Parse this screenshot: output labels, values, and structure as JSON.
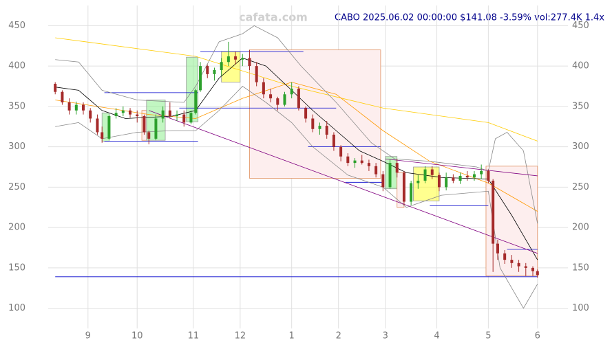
{
  "chart_data": {
    "type": "candlestick",
    "title": "CABO 2025.06.02 00:00:00 $141.08 -3.59% vol:277.4K 1.4x",
    "watermark": "cafata.com",
    "up_color": "#2ca02c",
    "down_color": "#a52a2a",
    "xlim": [
      -3,
      219
    ],
    "ylim": [
      75,
      475
    ],
    "xticks": [
      {
        "value": 14,
        "label": "9"
      },
      {
        "value": 35,
        "label": "10"
      },
      {
        "value": 59,
        "label": "11"
      },
      {
        "value": 79,
        "label": "12"
      },
      {
        "value": 101,
        "label": "1"
      },
      {
        "value": 121,
        "label": "2"
      },
      {
        "value": 141,
        "label": "3"
      },
      {
        "value": 163,
        "label": "4"
      },
      {
        "value": 185,
        "label": "5"
      },
      {
        "value": 206,
        "label": "6"
      }
    ],
    "yticks": [
      100,
      150,
      200,
      250,
      300,
      350,
      400,
      450
    ],
    "grid": true,
    "x": [
      0,
      3,
      6,
      9,
      12,
      15,
      18,
      20,
      23,
      26,
      29,
      32,
      35,
      38,
      40,
      43,
      46,
      49,
      52,
      55,
      58,
      60,
      62,
      65,
      68,
      71,
      74,
      77,
      80,
      83,
      86,
      89,
      92,
      95,
      98,
      101,
      104,
      107,
      110,
      113,
      116,
      119,
      122,
      125,
      128,
      131,
      134,
      137,
      140,
      143,
      146,
      149,
      152,
      155,
      158,
      161,
      164,
      167,
      170,
      173,
      176,
      179,
      182,
      185,
      187,
      189,
      192,
      195,
      198,
      201,
      204,
      206
    ],
    "open": [
      378,
      368,
      355,
      345,
      352,
      345,
      335,
      318,
      310,
      338,
      342,
      345,
      340,
      338,
      318,
      310,
      335,
      345,
      338,
      340,
      330,
      342,
      370,
      400,
      390,
      395,
      405,
      412,
      408,
      410,
      400,
      380,
      365,
      360,
      352,
      365,
      372,
      348,
      335,
      322,
      326,
      315,
      300,
      288,
      280,
      283,
      280,
      276,
      266,
      250,
      280,
      268,
      232,
      255,
      258,
      272,
      265,
      250,
      262,
      258,
      264,
      262,
      266,
      270,
      258,
      180,
      168,
      160,
      156,
      152,
      150,
      146
    ],
    "high": [
      380,
      370,
      360,
      356,
      355,
      348,
      340,
      325,
      340,
      348,
      350,
      348,
      345,
      340,
      320,
      340,
      350,
      355,
      345,
      345,
      345,
      372,
      405,
      402,
      398,
      410,
      430,
      418,
      415,
      420,
      405,
      385,
      372,
      362,
      368,
      380,
      375,
      350,
      340,
      330,
      332,
      318,
      302,
      292,
      286,
      290,
      284,
      280,
      270,
      285,
      285,
      270,
      258,
      265,
      276,
      276,
      268,
      268,
      266,
      268,
      270,
      270,
      278,
      272,
      260,
      185,
      172,
      166,
      160,
      156,
      152,
      148
    ],
    "low": [
      365,
      352,
      340,
      340,
      340,
      330,
      315,
      305,
      308,
      335,
      338,
      336,
      330,
      315,
      303,
      308,
      330,
      335,
      332,
      325,
      328,
      340,
      368,
      385,
      382,
      388,
      400,
      402,
      400,
      395,
      375,
      360,
      355,
      345,
      350,
      360,
      345,
      330,
      318,
      315,
      310,
      295,
      282,
      276,
      274,
      278,
      270,
      262,
      245,
      248,
      262,
      228,
      228,
      248,
      255,
      260,
      245,
      246,
      255,
      254,
      258,
      258,
      260,
      255,
      145,
      160,
      155,
      150,
      145,
      140,
      140,
      138
    ],
    "close": [
      368,
      355,
      345,
      352,
      345,
      335,
      318,
      310,
      338,
      342,
      345,
      340,
      338,
      318,
      310,
      335,
      345,
      338,
      340,
      330,
      342,
      370,
      400,
      390,
      395,
      405,
      412,
      408,
      410,
      400,
      380,
      365,
      360,
      352,
      365,
      372,
      348,
      335,
      322,
      326,
      315,
      300,
      288,
      280,
      283,
      280,
      276,
      266,
      250,
      280,
      268,
      232,
      255,
      258,
      272,
      265,
      250,
      262,
      258,
      264,
      262,
      266,
      270,
      258,
      180,
      168,
      160,
      156,
      152,
      150,
      146,
      141.08
    ],
    "overlays": [
      {
        "color": "#ffcc00",
        "x": [
          0,
          60,
          101,
          140,
          185,
          206
        ],
        "values": [
          435,
          412,
          375,
          348,
          330,
          307
        ]
      },
      {
        "color": "#ff9900",
        "x": [
          0,
          40,
          60,
          80,
          101,
          120,
          140,
          160,
          185,
          206
        ],
        "values": [
          358,
          340,
          335,
          360,
          380,
          365,
          320,
          282,
          255,
          220
        ]
      },
      {
        "color": "#000000",
        "x": [
          0,
          10,
          20,
          30,
          50,
          60,
          70,
          80,
          90,
          101,
          110,
          120,
          130,
          140,
          150,
          165,
          185,
          195,
          206
        ],
        "values": [
          374,
          370,
          345,
          335,
          338,
          345,
          385,
          410,
          400,
          370,
          345,
          320,
          295,
          282,
          268,
          262,
          260,
          215,
          160
        ]
      },
      {
        "color": "#888888",
        "x": [
          0,
          10,
          20,
          35,
          55,
          60,
          70,
          80,
          85,
          95,
          105,
          120,
          135,
          145,
          160,
          180,
          185,
          188,
          193,
          200,
          206
        ],
        "values": [
          408,
          405,
          370,
          358,
          355,
          375,
          430,
          440,
          450,
          435,
          400,
          355,
          305,
          285,
          282,
          275,
          270,
          310,
          318,
          295,
          205
        ]
      },
      {
        "color": "#888888",
        "x": [
          0,
          10,
          20,
          35,
          50,
          60,
          70,
          80,
          90,
          101,
          110,
          125,
          140,
          150,
          165,
          185,
          190,
          200,
          206
        ],
        "values": [
          325,
          330,
          310,
          318,
          320,
          320,
          345,
          375,
          355,
          330,
          300,
          265,
          250,
          225,
          240,
          245,
          150,
          100,
          130
        ]
      },
      {
        "color": "#800080",
        "x": [
          40,
          206
        ],
        "values": [
          345,
          168
        ]
      },
      {
        "color": "#800080",
        "x": [
          141,
          206
        ],
        "values": [
          285,
          264
        ]
      }
    ],
    "zones": [
      {
        "color": "#90ee90",
        "x": [
          20,
          23
        ],
        "values": [
          307,
          342
        ]
      },
      {
        "color": "#f4a582",
        "x": [
          37,
          39
        ],
        "values": [
          308,
          345
        ]
      },
      {
        "color": "#90ee90",
        "x": [
          39,
          47
        ],
        "values": [
          308,
          358
        ]
      },
      {
        "color": "#90ee90",
        "x": [
          56,
          61
        ],
        "values": [
          331,
          411
        ]
      },
      {
        "color": "#ffff33",
        "x": [
          71,
          79
        ],
        "values": [
          380,
          418
        ]
      },
      {
        "color": "#f4a582",
        "x": [
          83,
          139
        ],
        "values": [
          261,
          420
        ]
      },
      {
        "color": "#90ee90",
        "x": [
          141,
          146
        ],
        "values": [
          248,
          288
        ]
      },
      {
        "color": "#f4a582",
        "x": [
          146,
          149
        ],
        "values": [
          225,
          268
        ]
      },
      {
        "color": "#ffff33",
        "x": [
          153,
          164
        ],
        "values": [
          233,
          275
        ]
      },
      {
        "color": "#f4a582",
        "x": [
          184,
          206
        ],
        "values": [
          140,
          276
        ]
      }
    ],
    "levels": [
      {
        "color": "#0000cc",
        "x": [
          21,
          61
        ],
        "values": [
          367,
          367
        ]
      },
      {
        "color": "#0000cc",
        "x": [
          21,
          61
        ],
        "values": [
          307,
          307
        ]
      },
      {
        "color": "#0000cc",
        "x": [
          62,
          106
        ],
        "values": [
          418,
          418
        ]
      },
      {
        "color": "#0000cc",
        "x": [
          53,
          120
        ],
        "values": [
          348,
          348
        ]
      },
      {
        "color": "#0000cc",
        "x": [
          108,
          139
        ],
        "values": [
          300,
          300
        ]
      },
      {
        "color": "#0000cc",
        "x": [
          124,
          140
        ],
        "values": [
          256,
          256
        ]
      },
      {
        "color": "#0000cc",
        "x": [
          160,
          185
        ],
        "values": [
          227,
          227
        ]
      },
      {
        "color": "#0000cc",
        "x": [
          193,
          206
        ],
        "values": [
          173,
          173
        ]
      },
      {
        "color": "#0000cc",
        "x": [
          0,
          206
        ],
        "values": [
          139,
          139
        ]
      }
    ]
  }
}
